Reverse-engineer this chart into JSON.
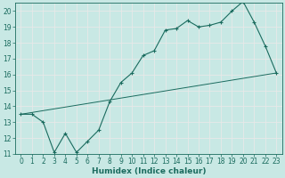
{
  "title": "",
  "xlabel": "Humidex (Indice chaleur)",
  "xlim": [
    -0.5,
    23.5
  ],
  "ylim": [
    11,
    20.5
  ],
  "yticks": [
    11,
    12,
    13,
    14,
    15,
    16,
    17,
    18,
    19,
    20
  ],
  "xticks": [
    0,
    1,
    2,
    3,
    4,
    5,
    6,
    7,
    8,
    9,
    10,
    11,
    12,
    13,
    14,
    15,
    16,
    17,
    18,
    19,
    20,
    21,
    22,
    23
  ],
  "bg_color": "#c8e8e4",
  "grid_color": "#e8e8e8",
  "line_color": "#1a6b5e",
  "line1_x": [
    0,
    1,
    2,
    3,
    4,
    5,
    6,
    7,
    8,
    9,
    10,
    11,
    12,
    13,
    14,
    15,
    16,
    17,
    18,
    19,
    20,
    21,
    22,
    23
  ],
  "line1_y": [
    13.5,
    13.5,
    13.0,
    11.1,
    12.3,
    11.1,
    11.8,
    12.5,
    14.3,
    15.5,
    16.1,
    17.2,
    17.5,
    18.8,
    18.9,
    19.4,
    19.0,
    19.1,
    19.3,
    20.0,
    20.6,
    19.3,
    17.8,
    16.1
  ],
  "line2_x": [
    0,
    23
  ],
  "line2_y": [
    13.5,
    16.1
  ],
  "marker_size": 2.5,
  "tick_fontsize": 5.5,
  "xlabel_fontsize": 6.5
}
